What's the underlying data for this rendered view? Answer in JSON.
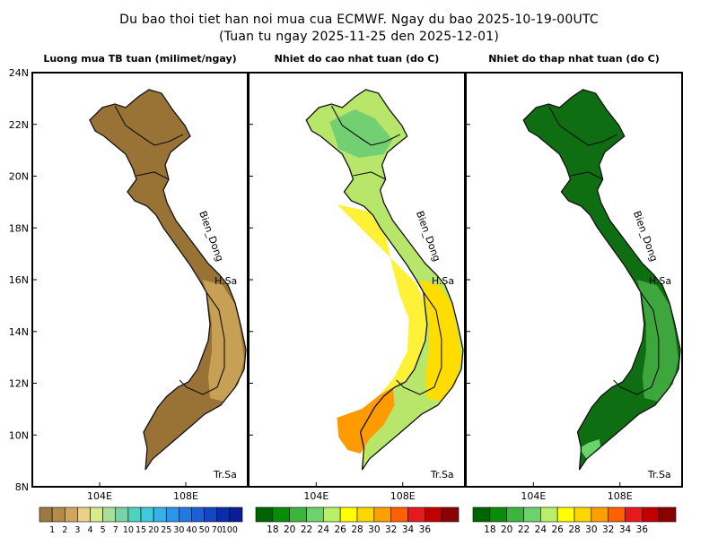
{
  "title_line1": "Du bao thoi tiet han noi mua cua ECMWF. Ngay du bao 2025-10-19-00UTC",
  "title_line2": "(Tuan tu ngay 2025-11-25 den 2025-12-01)",
  "panels": [
    {
      "title": "Luong mua TB tuan (milimet/ngay)",
      "land_color": "#997336",
      "accent_color": "#c8a055"
    },
    {
      "title": "Nhiet do cao nhat tuan (do C)",
      "land_color": "#b8e66a",
      "accent_color": "#ffdd00"
    },
    {
      "title": "Nhiet do thap nhat tuan (do C)",
      "land_color": "#0f6e12",
      "accent_color": "#3da63d"
    }
  ],
  "map": {
    "lat_labels": [
      "24N",
      "22N",
      "20N",
      "18N",
      "16N",
      "14N",
      "12N",
      "10N",
      "8N"
    ],
    "lon_labels": [
      "104E",
      "108E"
    ],
    "label_bien_dong": "Bien_Dong",
    "label_hoang_sa": "H.Sa",
    "label_truong_sa": "Tr.Sa"
  },
  "legends": [
    {
      "labels": [
        "1",
        "2",
        "3",
        "4",
        "5",
        "7",
        "10",
        "15",
        "20",
        "25",
        "30",
        "40",
        "50",
        "70",
        "100"
      ],
      "colors": [
        "#9a7a3e",
        "#b58b4a",
        "#d2a55e",
        "#ead08a",
        "#d8ec8a",
        "#a8e09a",
        "#78d4a8",
        "#50d2c0",
        "#40c8dc",
        "#36b2e8",
        "#2c96ec",
        "#2478e2",
        "#1c5ed8",
        "#1446c4",
        "#0a2cae",
        "#0a1c96"
      ]
    },
    {
      "labels": [
        "18",
        "20",
        "22",
        "24",
        "26",
        "28",
        "30",
        "32",
        "34",
        "36"
      ],
      "colors": [
        "#006400",
        "#0a8c0a",
        "#3cb53c",
        "#6cd26c",
        "#b8f06a",
        "#ffff00",
        "#ffd700",
        "#ffa000",
        "#ff6000",
        "#e41a1c",
        "#c00000",
        "#8b0000"
      ]
    },
    {
      "labels": [
        "18",
        "20",
        "22",
        "24",
        "26",
        "28",
        "30",
        "32",
        "34",
        "36"
      ],
      "colors": [
        "#006400",
        "#0a8c0a",
        "#3cb53c",
        "#6cd26c",
        "#b8f06a",
        "#ffff00",
        "#ffd700",
        "#ffa000",
        "#ff6000",
        "#e41a1c",
        "#c00000",
        "#8b0000"
      ]
    }
  ]
}
